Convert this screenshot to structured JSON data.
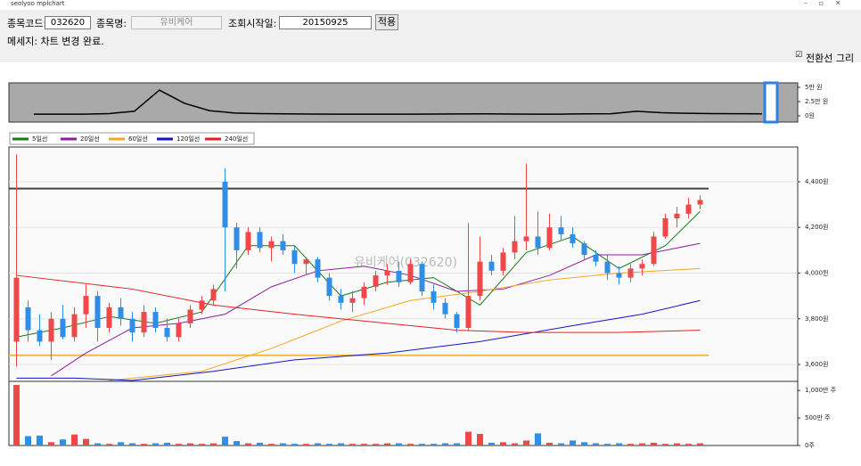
{
  "window": {
    "title": "seolyoo mplchart"
  },
  "form": {
    "code_label": "종목코드:",
    "code": "032620",
    "name_label": "종목명:",
    "name": "유비케어",
    "date_label": "조회시작일:",
    "date": "20150925",
    "apply": "적용"
  },
  "message": "메세지: 차트 변경 완료.",
  "checkbox": {
    "label": "전환선 그리기",
    "checked": true
  },
  "chart_data": [
    {
      "type": "line",
      "color": "#000000",
      "values": [
        3000,
        3000,
        3000,
        4000,
        8000,
        45000,
        22000,
        9000,
        5000,
        4000,
        3500,
        3200,
        3000,
        3000,
        3000,
        3000,
        3200,
        3300,
        3500,
        3200,
        3000,
        3000,
        3500,
        3800,
        8000,
        5500,
        4500,
        4000,
        3800,
        3500
      ],
      "ylim": [
        -10900,
        57800
      ],
      "yticks": [
        {
          "value": 50000,
          "label": "5만 원"
        },
        {
          "value": 25000,
          "label": "2.5만 원"
        },
        {
          "value": 0,
          "label": "0원"
        }
      ]
    },
    {
      "type": "candlestick",
      "watermark": "유비케어(032620)",
      "up_color": "#f04848",
      "down_color": "#2f8fe8",
      "open": [
        3700,
        3850,
        3750,
        3700,
        3800,
        3720,
        3820,
        3900,
        3760,
        3850,
        3800,
        3740,
        3830,
        3760,
        3720,
        3780,
        3840,
        3880,
        4400,
        4200,
        4100,
        4180,
        4110,
        4140,
        4100,
        4040,
        4060,
        3980,
        3900,
        3870,
        3890,
        3940,
        3990,
        4010,
        3960,
        4040,
        3920,
        3870,
        3820,
        3760,
        3900,
        4050,
        4010,
        4090,
        4140,
        4160,
        4110,
        4200,
        4170,
        4130,
        4080,
        4050,
        4000,
        3980,
        4020,
        4040,
        4160,
        4240,
        4260,
        4300
      ],
      "high": [
        4520,
        3880,
        3820,
        3830,
        3860,
        3850,
        3950,
        3920,
        3870,
        3890,
        3830,
        3860,
        3850,
        3800,
        3800,
        3860,
        3900,
        3950,
        4460,
        4220,
        4200,
        4200,
        4160,
        4170,
        4120,
        4070,
        4070,
        4000,
        3930,
        3920,
        3960,
        4010,
        4040,
        4050,
        4060,
        4050,
        3950,
        3890,
        3830,
        4220,
        4160,
        4080,
        4110,
        4250,
        4480,
        4270,
        4260,
        4250,
        4200,
        4140,
        4100,
        4080,
        4030,
        4040,
        4060,
        4180,
        4260,
        4290,
        4330,
        4340
      ],
      "low": [
        3590,
        3700,
        3680,
        3620,
        3710,
        3700,
        3760,
        3700,
        3740,
        3770,
        3700,
        3720,
        3740,
        3700,
        3700,
        3760,
        3820,
        3860,
        3920,
        4020,
        4080,
        4090,
        4050,
        4080,
        4000,
        3990,
        3960,
        3880,
        3840,
        3830,
        3860,
        3920,
        3950,
        3940,
        3950,
        3900,
        3840,
        3800,
        3740,
        3750,
        3880,
        3990,
        3990,
        4060,
        4100,
        4080,
        4100,
        4140,
        4110,
        4060,
        4030,
        3970,
        3950,
        3960,
        3990,
        4030,
        4150,
        4200,
        4240,
        4280
      ],
      "close": [
        3980,
        3750,
        3700,
        3800,
        3720,
        3820,
        3900,
        3760,
        3850,
        3800,
        3740,
        3830,
        3760,
        3720,
        3780,
        3840,
        3880,
        3930,
        4200,
        4100,
        4180,
        4110,
        4140,
        4100,
        4040,
        4060,
        3980,
        3900,
        3870,
        3890,
        3940,
        3990,
        4010,
        3960,
        4040,
        3920,
        3870,
        3820,
        3760,
        3900,
        4050,
        4010,
        4090,
        4140,
        4160,
        4110,
        4200,
        4170,
        4130,
        4080,
        4050,
        4000,
        3980,
        4020,
        4040,
        4160,
        4240,
        4260,
        4300,
        4320
      ],
      "series": [
        {
          "name": "5일선",
          "color": "#1a7a1a",
          "x": [
            0,
            4,
            8,
            12,
            16,
            20,
            24,
            28,
            32,
            36,
            40,
            44,
            48,
            52,
            56,
            59
          ],
          "values": [
            3720,
            3760,
            3810,
            3780,
            3830,
            4120,
            4120,
            3900,
            3960,
            3980,
            3860,
            4090,
            4160,
            4020,
            4120,
            4270
          ]
        },
        {
          "name": "20일선",
          "color": "#8e1e9a",
          "x": [
            3,
            6,
            10,
            14,
            18,
            22,
            26,
            30,
            34,
            38,
            42,
            46,
            50,
            54,
            59
          ],
          "values": [
            3550,
            3650,
            3760,
            3780,
            3820,
            3940,
            4010,
            4030,
            3990,
            3920,
            3930,
            3990,
            4080,
            4080,
            4130
          ]
        },
        {
          "name": "60일선",
          "color": "#f5a623",
          "x": [
            8,
            16,
            22,
            28,
            34,
            40,
            46,
            52,
            59
          ],
          "values": [
            3530,
            3570,
            3670,
            3790,
            3880,
            3920,
            3970,
            4000,
            4020
          ]
        },
        {
          "name": "120일선",
          "color": "#1414c8",
          "x": [
            0,
            5,
            10,
            17,
            24,
            32,
            40,
            48,
            54,
            59
          ],
          "values": [
            3540,
            3540,
            3530,
            3570,
            3620,
            3650,
            3700,
            3770,
            3820,
            3880
          ]
        },
        {
          "name": "240일선",
          "color": "#e82020",
          "x": [
            0,
            10,
            17,
            24,
            32,
            38,
            44,
            52,
            59
          ],
          "values": [
            3990,
            3930,
            3860,
            3820,
            3780,
            3750,
            3740,
            3740,
            3750
          ]
        }
      ],
      "hlines": [
        {
          "value": 4370,
          "color": "#444444"
        },
        {
          "value": 3640,
          "color": "#f5b942"
        }
      ],
      "ylim": [
        3526,
        4552
      ],
      "yticks": [
        {
          "value": 3600,
          "label": "3,600원"
        },
        {
          "value": 3800,
          "label": "3,800원"
        },
        {
          "value": 4000,
          "label": "4,000원"
        },
        {
          "value": 4200,
          "label": "4,200원"
        },
        {
          "value": 4400,
          "label": "4,400원"
        }
      ],
      "grid": true
    },
    {
      "type": "bar",
      "values": [
        1100,
        170,
        180,
        60,
        110,
        200,
        120,
        40,
        30,
        60,
        40,
        30,
        40,
        50,
        30,
        40,
        30,
        40,
        160,
        80,
        40,
        50,
        30,
        40,
        30,
        30,
        40,
        30,
        40,
        30,
        30,
        30,
        40,
        40,
        30,
        30,
        30,
        40,
        40,
        250,
        210,
        50,
        60,
        40,
        90,
        220,
        50,
        40,
        90,
        60,
        40,
        30,
        40,
        30,
        40,
        50,
        30,
        40,
        30,
        40
      ],
      "ylim": [
        0,
        1165
      ],
      "yticks": [
        {
          "value": 0,
          "label": "0주"
        },
        {
          "value": 500,
          "label": "500만 주"
        },
        {
          "value": 1000,
          "label": "1,000만 주"
        }
      ]
    }
  ]
}
